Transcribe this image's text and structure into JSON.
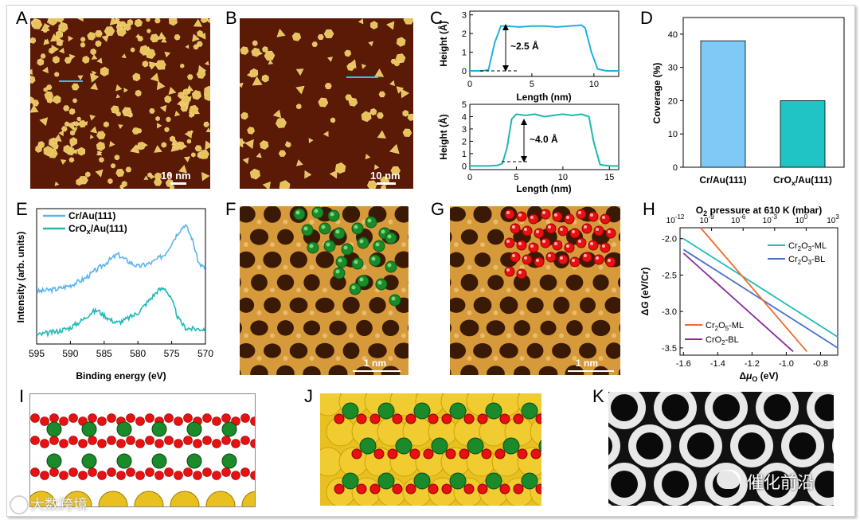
{
  "labels": {
    "A": "A",
    "B": "B",
    "C": "C",
    "D": "D",
    "E": "E",
    "F": "F",
    "G": "G",
    "H": "H",
    "I": "I",
    "J": "J",
    "K": "K"
  },
  "panelA": {
    "scalebar": "10 nm"
  },
  "panelB": {
    "scalebar": "10 nm"
  },
  "panelF": {
    "scalebar": "1 nm"
  },
  "panelG": {
    "scalebar": "1 nm"
  },
  "panelC_top": {
    "xlabel": "Length (nm)",
    "ylabel": "Height (Å)",
    "annotation": "~2.5 Å",
    "xticks": [
      "0",
      "5",
      "10"
    ],
    "yticks": [
      "0",
      "1",
      "2",
      "3"
    ]
  },
  "panelC_bottom": {
    "xlabel": "Length (nm)",
    "ylabel": "Height (Å)",
    "annotation": "~4.0 Å",
    "xticks": [
      "0",
      "5",
      "10",
      "15"
    ],
    "yticks": [
      "0",
      "1",
      "2",
      "3",
      "4",
      "5"
    ]
  },
  "panelD": {
    "ylabel": "Coverage (%)",
    "yticks": [
      "0",
      "10",
      "20",
      "30",
      "40"
    ],
    "cat1": "Cr/Au(111)",
    "cat2_main": "CrO",
    "cat2_sub": "x",
    "cat2_tail": "/Au(111)"
  },
  "panelE": {
    "xlabel": "Binding energy (eV)",
    "ylabel": "Intensity (arb. units)",
    "xticks": [
      "595",
      "590",
      "585",
      "580",
      "575",
      "570"
    ],
    "legend1": "Cr/Au(111)",
    "legend2_main": "CrO",
    "legend2_sub": "x",
    "legend2_tail": "/Au(111)"
  },
  "panelH": {
    "top_title_pre": "O",
    "top_title_sub": "2",
    "top_title_post": " pressure at 610 K (mbar)",
    "top_ticks_base": [
      "10",
      "10",
      "10",
      "10",
      "10",
      "10"
    ],
    "top_ticks_exp": [
      "-12",
      "-9",
      "-6",
      "-3",
      "0",
      "3"
    ],
    "xticks": [
      "-1.6",
      "-1.4",
      "-1.2",
      "-1.0",
      "-0.8"
    ],
    "yticks": [
      "-2.0",
      "-2.5",
      "-3.0",
      "-3.5"
    ],
    "ylabel_pre": "Δ",
    "ylabel_g": "G",
    "ylabel_post": " (eV/Cr)",
    "xlabel_pre": "Δ",
    "xlabel_mu": "μ",
    "xlabel_sub": "O",
    "xlabel_post": " (eV)",
    "leg1": [
      "Cr",
      "2",
      "O",
      "3",
      "-ML"
    ],
    "leg2": [
      "Cr",
      "2",
      "O",
      "3",
      "-BL"
    ],
    "leg3": [
      "Cr",
      "2",
      "O",
      "5",
      "-ML"
    ],
    "leg4": [
      "CrO",
      "2",
      "-BL"
    ]
  },
  "watermarks": {
    "left": "大数跨境",
    "right": "催化前沿"
  },
  "chart_data": [
    {
      "type": "line",
      "title": "",
      "xlabel": "Length (nm)",
      "ylabel": "Height (Å)",
      "xlim": [
        0,
        12
      ],
      "ylim": [
        -0.3,
        3.2
      ],
      "series": [
        {
          "name": "",
          "x": [
            0,
            1,
            1.5,
            2,
            2.5,
            3,
            4,
            5,
            6,
            7,
            8,
            9,
            9.3,
            9.8,
            10.3,
            11,
            12
          ],
          "y": [
            0,
            0,
            0.05,
            1.5,
            2.4,
            2.4,
            2.35,
            2.4,
            2.4,
            2.35,
            2.4,
            2.45,
            2.3,
            1.0,
            0.1,
            0,
            0
          ]
        }
      ],
      "annotation": "~2.5 Å"
    },
    {
      "type": "line",
      "title": "",
      "xlabel": "Length (nm)",
      "ylabel": "Height (Å)",
      "xlim": [
        0,
        16
      ],
      "ylim": [
        -0.3,
        5
      ],
      "series": [
        {
          "name": "",
          "x": [
            0,
            2,
            3,
            3.5,
            4,
            4.5,
            5,
            6,
            7,
            8,
            9,
            10,
            11,
            12,
            12.8,
            13.3,
            14,
            15,
            16
          ],
          "y": [
            0,
            0,
            0.05,
            0.2,
            1.5,
            3.8,
            4.2,
            4.1,
            4.2,
            4.0,
            4.1,
            4.2,
            4.1,
            4.2,
            4.0,
            2.0,
            0.1,
            0,
            0
          ]
        }
      ],
      "annotation": "~4.0 Å"
    },
    {
      "type": "bar",
      "title": "",
      "xlabel": "",
      "ylabel": "Coverage (%)",
      "ylim": [
        0,
        45
      ],
      "categories": [
        "Cr/Au(111)",
        "CrOx/Au(111)"
      ],
      "values": [
        38,
        20
      ],
      "colors": [
        "#7fc9f7",
        "#20c4c4"
      ]
    },
    {
      "type": "line",
      "title": "",
      "xlabel": "Binding energy (eV)",
      "ylabel": "Intensity (arb. units)",
      "xlim": [
        595,
        570
      ],
      "series": [
        {
          "name": "Cr/Au(111)",
          "color": "#5ab4ee",
          "x": [
            595,
            592,
            590,
            588,
            586,
            584,
            583,
            582,
            581,
            580,
            578,
            576,
            574,
            573,
            572,
            571,
            570
          ],
          "y": [
            0.32,
            0.34,
            0.37,
            0.42,
            0.5,
            0.58,
            0.62,
            0.58,
            0.55,
            0.52,
            0.55,
            0.62,
            0.8,
            0.86,
            0.75,
            0.55,
            0.5
          ]
        },
        {
          "name": "CrOx/Au(111)",
          "color": "#20b8b8",
          "x": [
            595,
            592,
            590,
            588,
            587,
            586,
            585,
            584,
            583,
            582,
            580,
            578,
            577,
            576,
            575,
            574,
            573,
            572,
            570
          ],
          "y": [
            0.02,
            0.05,
            0.08,
            0.15,
            0.2,
            0.22,
            0.18,
            0.14,
            0.12,
            0.14,
            0.2,
            0.32,
            0.38,
            0.4,
            0.3,
            0.15,
            0.08,
            0.07,
            0.07
          ]
        }
      ]
    },
    {
      "type": "line",
      "title": "",
      "xlabel": "Δμ_O (eV)",
      "ylabel": "ΔG (eV/Cr)",
      "xlim": [
        -1.62,
        -0.7
      ],
      "ylim": [
        -3.6,
        -1.85
      ],
      "series": [
        {
          "name": "Cr2O3-ML",
          "color": "#1fbcb8",
          "x": [
            -1.6,
            -0.7
          ],
          "y": [
            -2.0,
            -3.35
          ]
        },
        {
          "name": "Cr2O3-BL",
          "color": "#4a6fd0",
          "x": [
            -1.6,
            -0.7
          ],
          "y": [
            -2.15,
            -3.5
          ]
        },
        {
          "name": "Cr2O5-ML",
          "color": "#f26a2e",
          "x": [
            -1.5,
            -0.88
          ],
          "y": [
            -1.85,
            -3.55
          ]
        },
        {
          "name": "CrO2-BL",
          "color": "#8a2aa0",
          "x": [
            -1.6,
            -0.96
          ],
          "y": [
            -2.2,
            -3.55
          ]
        }
      ]
    }
  ]
}
